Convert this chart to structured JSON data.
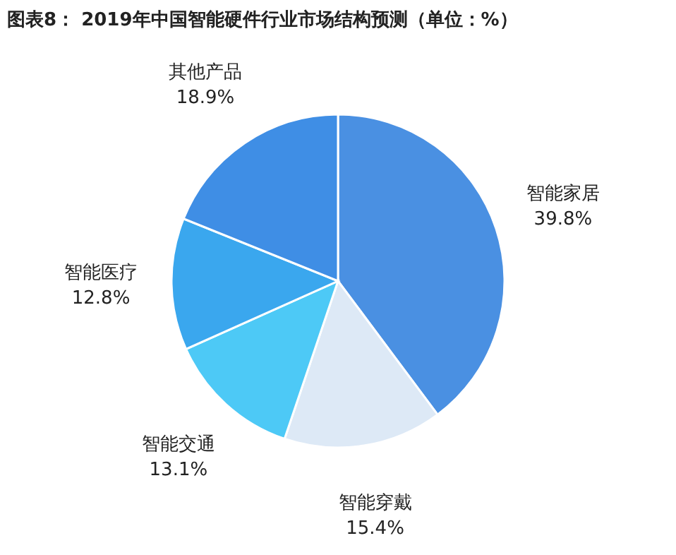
{
  "chart_data": {
    "type": "pie",
    "title": "图表8： 2019年中国智能硬件行业市场结构预测（单位：%）",
    "categories": [
      "智能家居",
      "智能穿戴",
      "智能交通",
      "智能医疗",
      "其他产品"
    ],
    "values": [
      39.8,
      15.4,
      13.1,
      12.8,
      18.9
    ],
    "value_labels": [
      "39.8%",
      "15.4%",
      "13.1%",
      "12.8%",
      "18.9%"
    ],
    "colors": [
      "#4a90e2",
      "#dde9f6",
      "#4dc9f6",
      "#3aa7ee",
      "#3f8ee5"
    ],
    "legend": false
  }
}
